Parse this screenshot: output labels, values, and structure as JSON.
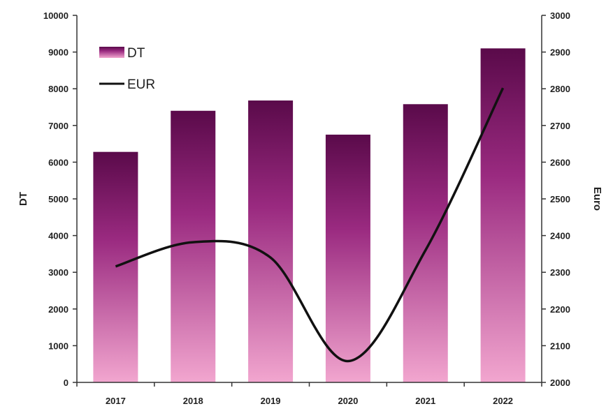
{
  "chart_data": {
    "type": "bar",
    "categories": [
      "2017",
      "2018",
      "2019",
      "2020",
      "2021",
      "2022"
    ],
    "series": [
      {
        "name": "DT",
        "type": "bar",
        "axis": "left",
        "values": [
          6280,
          7400,
          7680,
          6750,
          7580,
          9100
        ]
      },
      {
        "name": "EUR",
        "type": "line",
        "axis": "right",
        "values": [
          2316,
          2382,
          2340,
          2058,
          2360,
          2802
        ]
      }
    ],
    "ylabel": "DT",
    "y2label": "Euro",
    "ylim": [
      0,
      10000
    ],
    "y2lim": [
      2000,
      3000
    ],
    "yticks": [
      "0",
      "1000",
      "2000",
      "3000",
      "4000",
      "5000",
      "6000",
      "7000",
      "8000",
      "9000",
      "10000"
    ],
    "y2ticks": [
      "2000",
      "2100",
      "2200",
      "2300",
      "2400",
      "2500",
      "2600",
      "2700",
      "2800",
      "2900",
      "3000"
    ],
    "legend_position": "top-left",
    "grid": false,
    "colors": {
      "bar_top": "#5a0a4a",
      "bar_mid": "#9a2a80",
      "bar_bottom": "#f2a6cf",
      "line": "#111111",
      "axis": "#333333"
    }
  }
}
